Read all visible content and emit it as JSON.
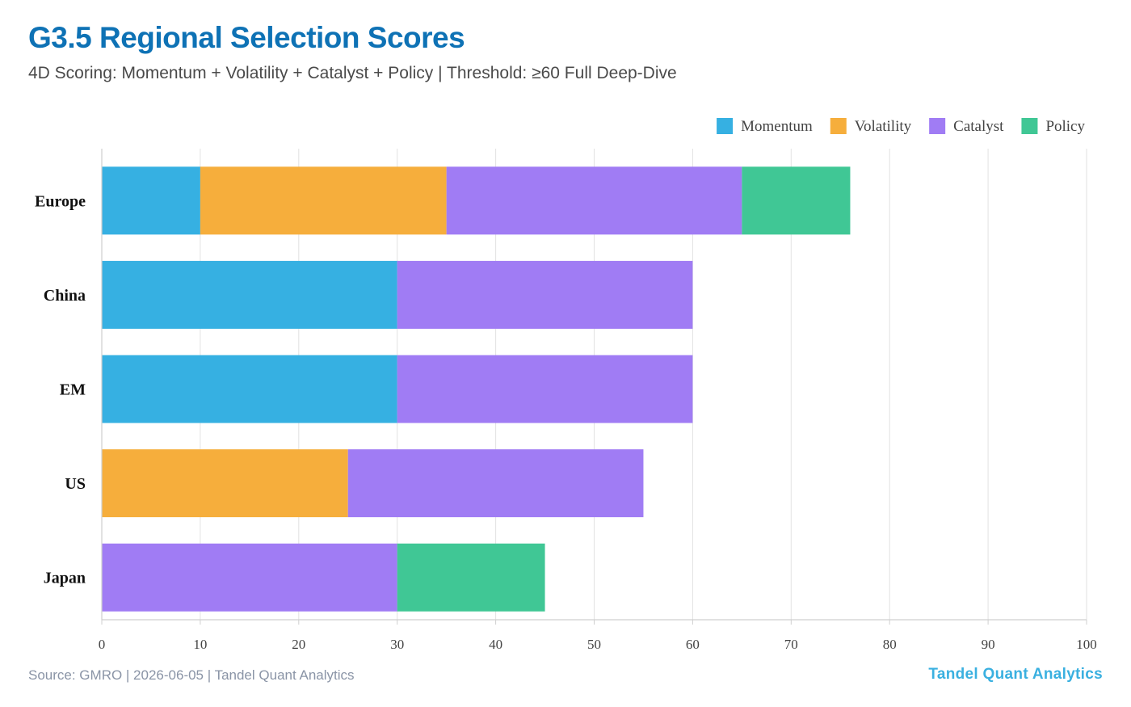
{
  "header": {
    "title": "G3.5 Regional Selection Scores",
    "subtitle": "4D Scoring: Momentum + Volatility + Catalyst + Policy | Threshold: ≥60 Full Deep-Dive"
  },
  "footer": {
    "source": "Source: GMRO | 2026-06-05 | Tandel Quant Analytics",
    "brand": "Tandel Quant Analytics"
  },
  "chart_data": {
    "type": "bar",
    "orientation": "horizontal",
    "stacked": true,
    "categories": [
      "Europe",
      "China",
      "EM",
      "US",
      "Japan"
    ],
    "series": [
      {
        "name": "Momentum",
        "color": "#36b0e2",
        "values": [
          10,
          30,
          30,
          0,
          0
        ]
      },
      {
        "name": "Volatility",
        "color": "#f6ae3c",
        "values": [
          25,
          0,
          0,
          25,
          0
        ]
      },
      {
        "name": "Catalyst",
        "color": "#a07cf4",
        "values": [
          30,
          30,
          30,
          30,
          30
        ]
      },
      {
        "name": "Policy",
        "color": "#40c795",
        "values": [
          11,
          0,
          0,
          0,
          15
        ]
      }
    ],
    "xlim": [
      0,
      100
    ],
    "xticks": [
      "0",
      "10",
      "20",
      "30",
      "40",
      "50",
      "60",
      "70",
      "80",
      "90",
      "100"
    ],
    "grid": true,
    "legend_position": "top-right"
  }
}
